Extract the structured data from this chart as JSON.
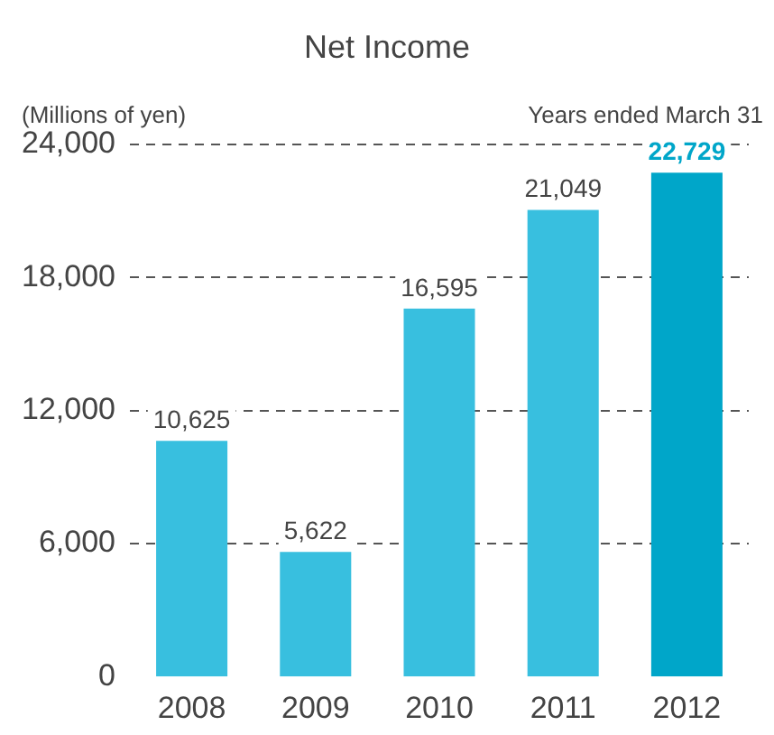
{
  "chart_data": {
    "type": "bar",
    "title": "Net Income",
    "ylabel": "(Millions of yen)",
    "annotations": [
      "Years ended March 31"
    ],
    "categories": [
      "2008",
      "2009",
      "2010",
      "2011",
      "2012"
    ],
    "values": [
      10625,
      5622,
      16595,
      21049,
      22729
    ],
    "colors": [
      "#38bfdf",
      "#38bfdf",
      "#38bfdf",
      "#38bfdf",
      "#00a6c9"
    ],
    "value_labels": [
      "10,625",
      "5,622",
      "16,595",
      "21,049",
      "22,729"
    ],
    "ylim": [
      0,
      24000
    ],
    "yticks": [
      {
        "value": 0,
        "label": "0"
      },
      {
        "value": 6000,
        "label": "6,000"
      },
      {
        "value": 12000,
        "label": "12,000"
      },
      {
        "value": 18000,
        "label": "18,000"
      },
      {
        "value": 24000,
        "label": "24,000"
      }
    ],
    "grid": "y"
  }
}
